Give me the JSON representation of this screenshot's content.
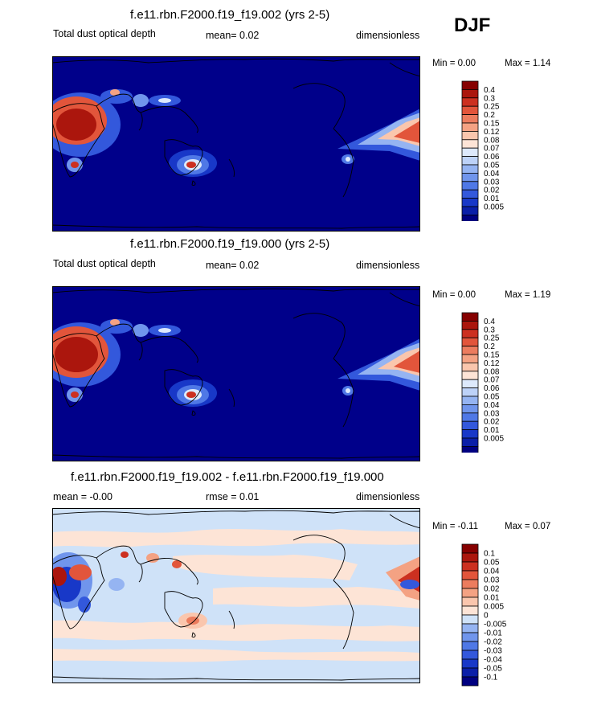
{
  "season": "DJF",
  "colors": {
    "abs_levels": [
      "#000080",
      "#0a1fa8",
      "#1838c8",
      "#3358dc",
      "#4f78e6",
      "#7095ec",
      "#95b4f2",
      "#bdd2f8",
      "#dde9fc",
      "#fde4d6",
      "#fac6ad",
      "#f4a283",
      "#ec7c5e",
      "#e2553b",
      "#cc3020",
      "#ab160d",
      "#860000"
    ],
    "diff_levels": [
      "#000080",
      "#0a1fa8",
      "#1838c8",
      "#3358dc",
      "#4f78e6",
      "#7095ec",
      "#95b4f2",
      "#cfe2f8",
      "#fde4d6",
      "#fac6ad",
      "#f4a283",
      "#ec7c5e",
      "#e2553b",
      "#cc3020",
      "#ab160d",
      "#860000"
    ]
  },
  "chart_data": [
    {
      "type": "heatmap",
      "title": "f.e11.rbn.F2000.f19_f19.002 (yrs 2-5)",
      "left_label": "Total dust optical depth",
      "mean_text": "mean=   0.02",
      "units": "dimensionless",
      "min_text": "Min =   0.00",
      "max_text": "Max =   1.14",
      "min": 0.0,
      "max": 1.14,
      "levels": [
        "0.4",
        "0.3",
        "0.25",
        "0.2",
        "0.15",
        "0.12",
        "0.08",
        "0.07",
        "0.06",
        "0.05",
        "0.04",
        "0.03",
        "0.02",
        "0.01",
        "0.005"
      ]
    },
    {
      "type": "heatmap",
      "title": "f.e11.rbn.F2000.f19_f19.000 (yrs 2-5)",
      "left_label": "Total dust optical depth",
      "mean_text": "mean=   0.02",
      "units": "dimensionless",
      "min_text": "Min =   0.00",
      "max_text": "Max =   1.19",
      "min": 0.0,
      "max": 1.19,
      "levels": [
        "0.4",
        "0.3",
        "0.25",
        "0.2",
        "0.15",
        "0.12",
        "0.08",
        "0.07",
        "0.06",
        "0.05",
        "0.04",
        "0.03",
        "0.02",
        "0.01",
        "0.005"
      ]
    },
    {
      "type": "heatmap",
      "title": "f.e11.rbn.F2000.f19_f19.002 - f.e11.rbn.F2000.f19_f19.000",
      "mean_text": "mean =  -0.00",
      "rmse_text": "rmse =   0.01",
      "units": "dimensionless",
      "min_text": "Min =  -0.11",
      "max_text": "Max =   0.07",
      "min": -0.11,
      "max": 0.07,
      "levels": [
        "0.1",
        "0.05",
        "0.04",
        "0.03",
        "0.02",
        "0.01",
        "0.005",
        "0",
        "-0.005",
        "-0.01",
        "-0.02",
        "-0.03",
        "-0.04",
        "-0.05",
        "-0.1"
      ]
    }
  ]
}
